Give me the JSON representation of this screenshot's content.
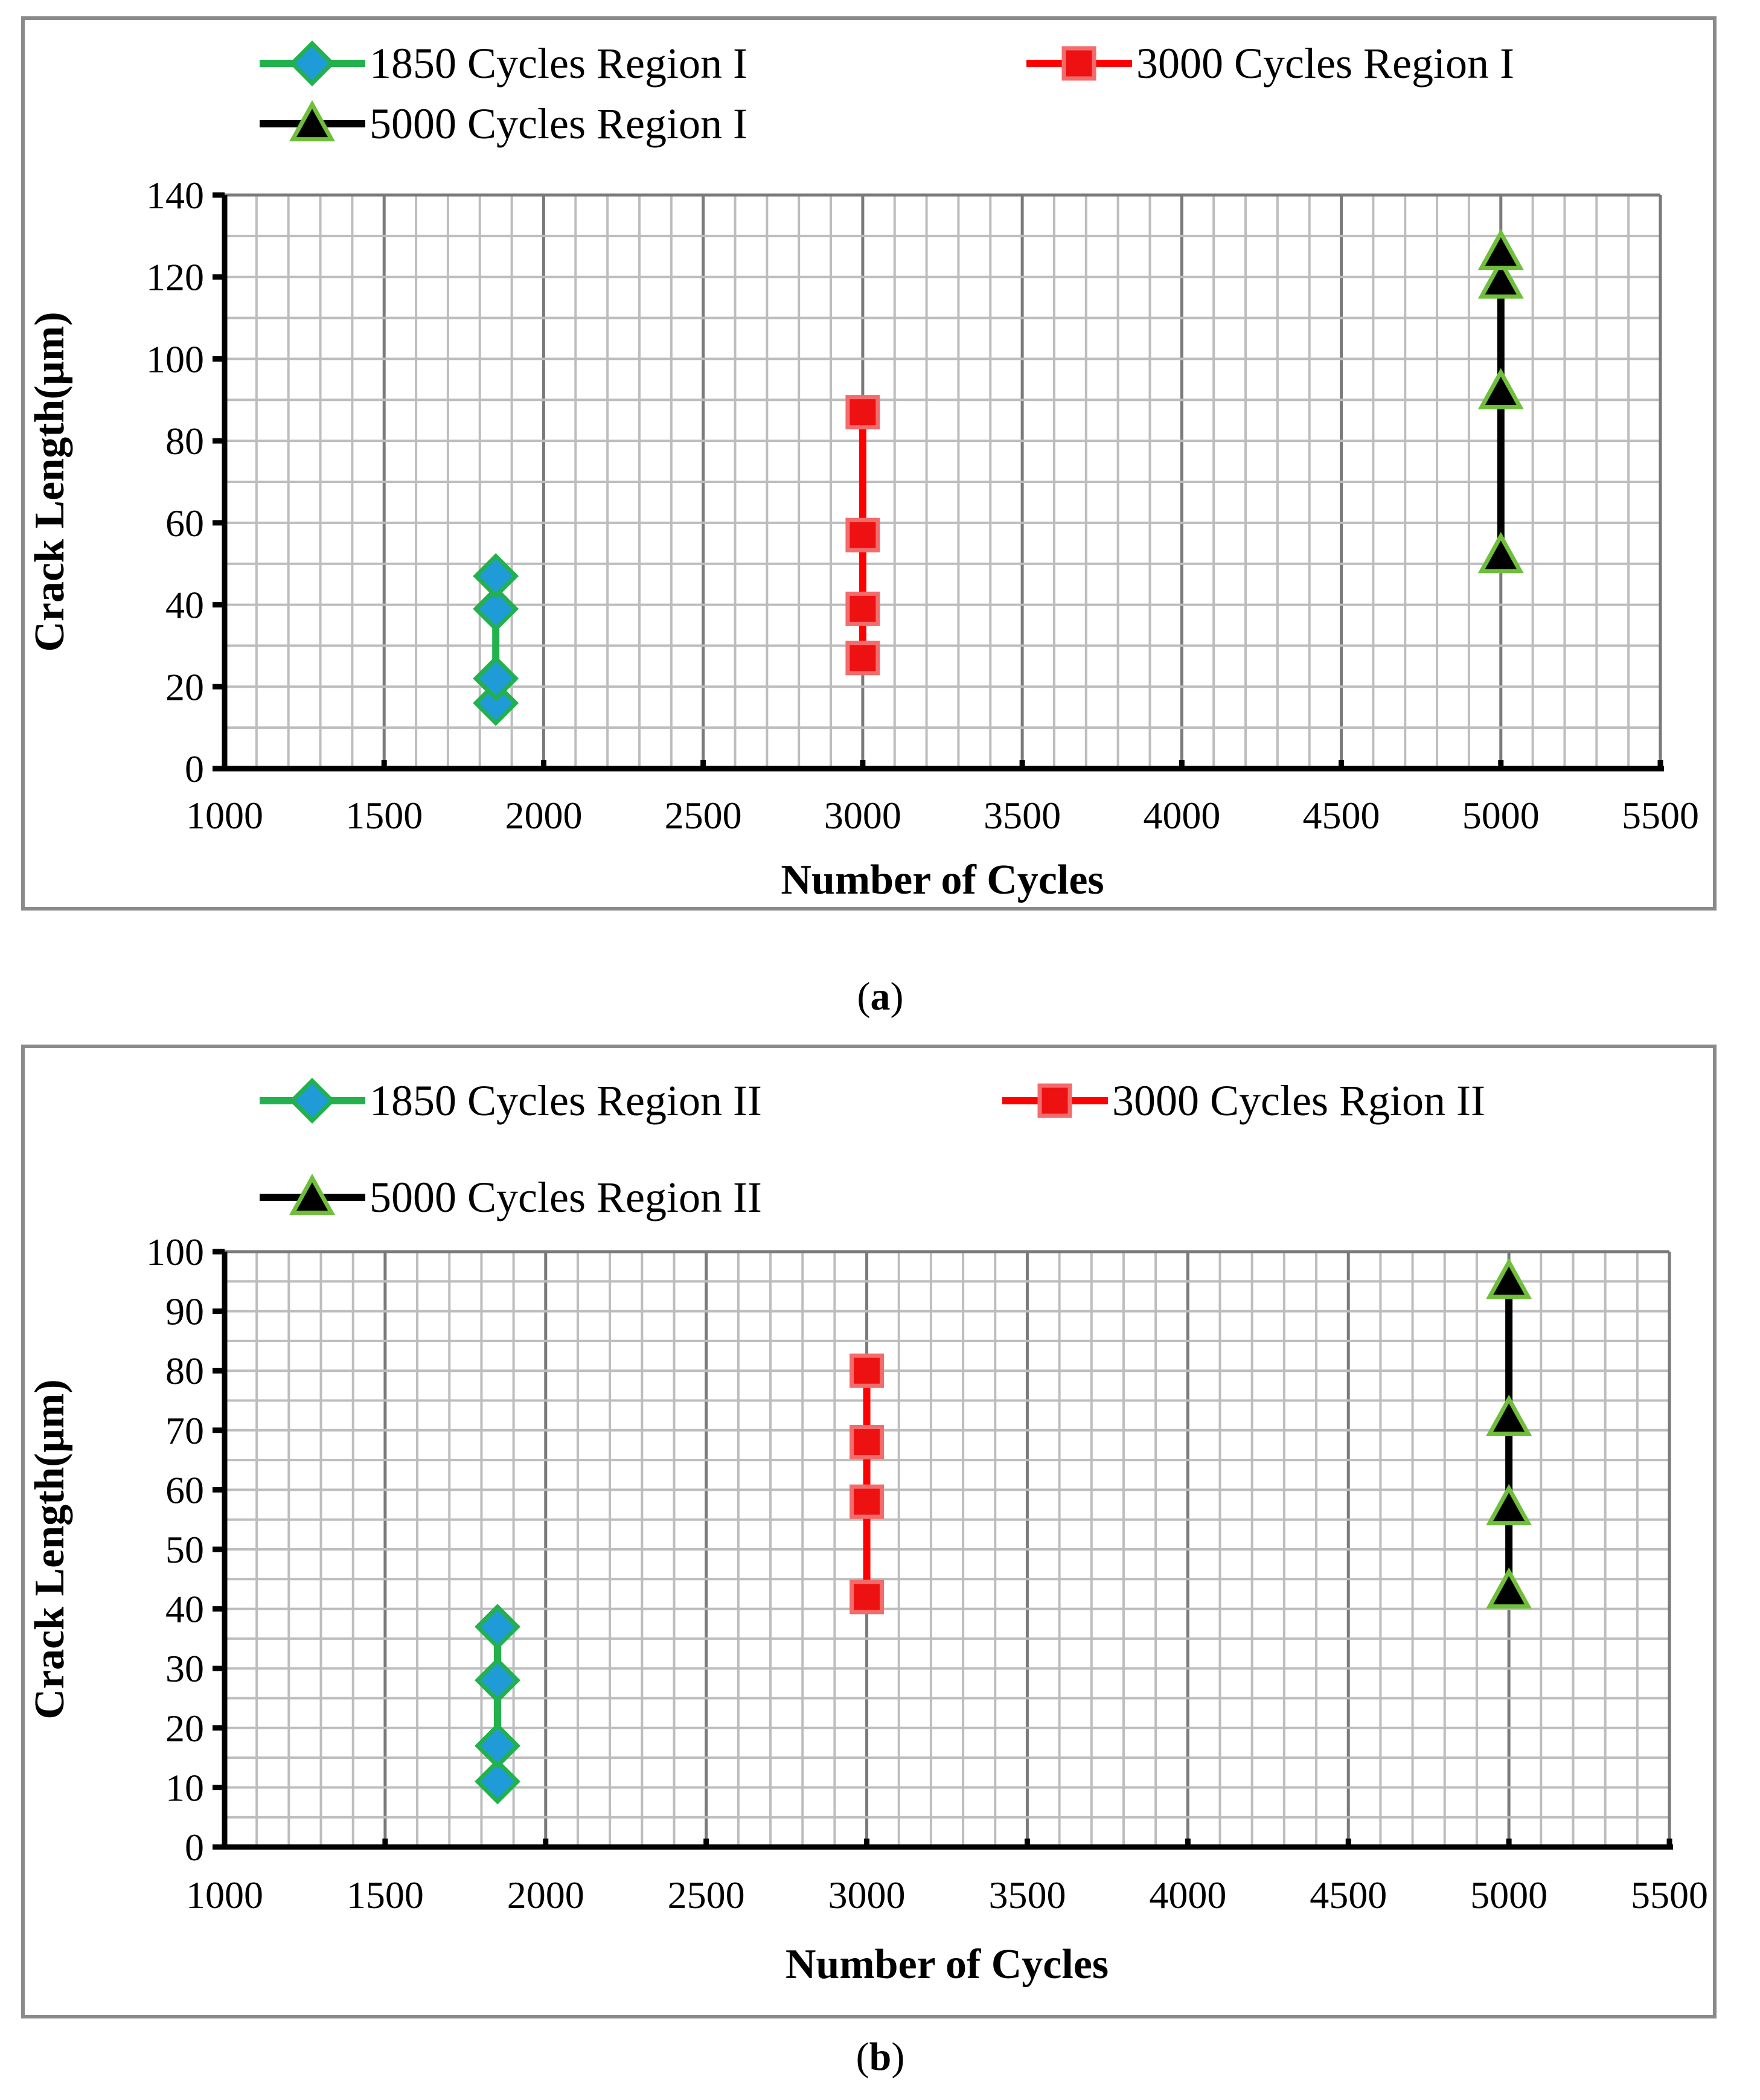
{
  "chart_data": [
    {
      "id": "a",
      "type": "line",
      "caption": {
        "open": "(",
        "letter": "a",
        "close": ")"
      },
      "xlabel": "Number of Cycles",
      "ylabel": "Crack Length(µm)",
      "xlim": [
        1000,
        5500
      ],
      "ylim": [
        0,
        140
      ],
      "xticks": [
        1000,
        1500,
        2000,
        2500,
        3000,
        3500,
        4000,
        4500,
        5000,
        5500
      ],
      "yticks": [
        0,
        20,
        40,
        60,
        80,
        100,
        120,
        140
      ],
      "series": [
        {
          "name": "1850 Cycles Region I",
          "marker": "diamond",
          "line_color": "#22b14c",
          "marker_fill": "#1f9bd7",
          "marker_stroke": "#22b14c",
          "points": [
            [
              1850,
              16
            ],
            [
              1850,
              22
            ],
            [
              1850,
              39
            ],
            [
              1850,
              47
            ]
          ]
        },
        {
          "name": "3000 Cycles Region I",
          "marker": "square",
          "line_color": "#ff0000",
          "marker_fill": "#ee1111",
          "marker_stroke": "#f36c6c",
          "points": [
            [
              3000,
              27
            ],
            [
              3000,
              39
            ],
            [
              3000,
              57
            ],
            [
              3000,
              87
            ]
          ]
        },
        {
          "name": "5000 Cycles Region I",
          "marker": "triangle",
          "line_color": "#000000",
          "marker_fill": "#000000",
          "marker_stroke": "#6fbf3a",
          "points": [
            [
              5000,
              52
            ],
            [
              5000,
              92
            ],
            [
              5000,
              119
            ],
            [
              5000,
              126
            ]
          ]
        }
      ]
    },
    {
      "id": "b",
      "type": "line",
      "caption": {
        "open": "(",
        "letter": "b",
        "close": ")"
      },
      "xlabel": "Number of Cycles",
      "ylabel": "Crack Length(µm)",
      "xlim": [
        1000,
        5500
      ],
      "ylim": [
        0,
        100
      ],
      "xticks": [
        1000,
        1500,
        2000,
        2500,
        3000,
        3500,
        4000,
        4500,
        5000,
        5500
      ],
      "yticks": [
        0,
        10,
        20,
        30,
        40,
        50,
        60,
        70,
        80,
        90,
        100
      ],
      "series": [
        {
          "name": "1850 Cycles Region II",
          "marker": "diamond",
          "line_color": "#22b14c",
          "marker_fill": "#1f9bd7",
          "marker_stroke": "#22b14c",
          "points": [
            [
              1850,
              11
            ],
            [
              1850,
              17
            ],
            [
              1850,
              28
            ],
            [
              1850,
              37
            ]
          ]
        },
        {
          "name": "3000 Cycles Rgion II",
          "marker": "square",
          "line_color": "#ff0000",
          "marker_fill": "#ee1111",
          "marker_stroke": "#f36c6c",
          "points": [
            [
              3000,
              42
            ],
            [
              3000,
              58
            ],
            [
              3000,
              68
            ],
            [
              3000,
              80
            ]
          ]
        },
        {
          "name": "5000 Cycles Region II",
          "marker": "triangle",
          "line_color": "#000000",
          "marker_fill": "#000000",
          "marker_stroke": "#6fbf3a",
          "points": [
            [
              5000,
              43
            ],
            [
              5000,
              57
            ],
            [
              5000,
              72
            ],
            [
              5000,
              95
            ]
          ]
        }
      ]
    }
  ]
}
